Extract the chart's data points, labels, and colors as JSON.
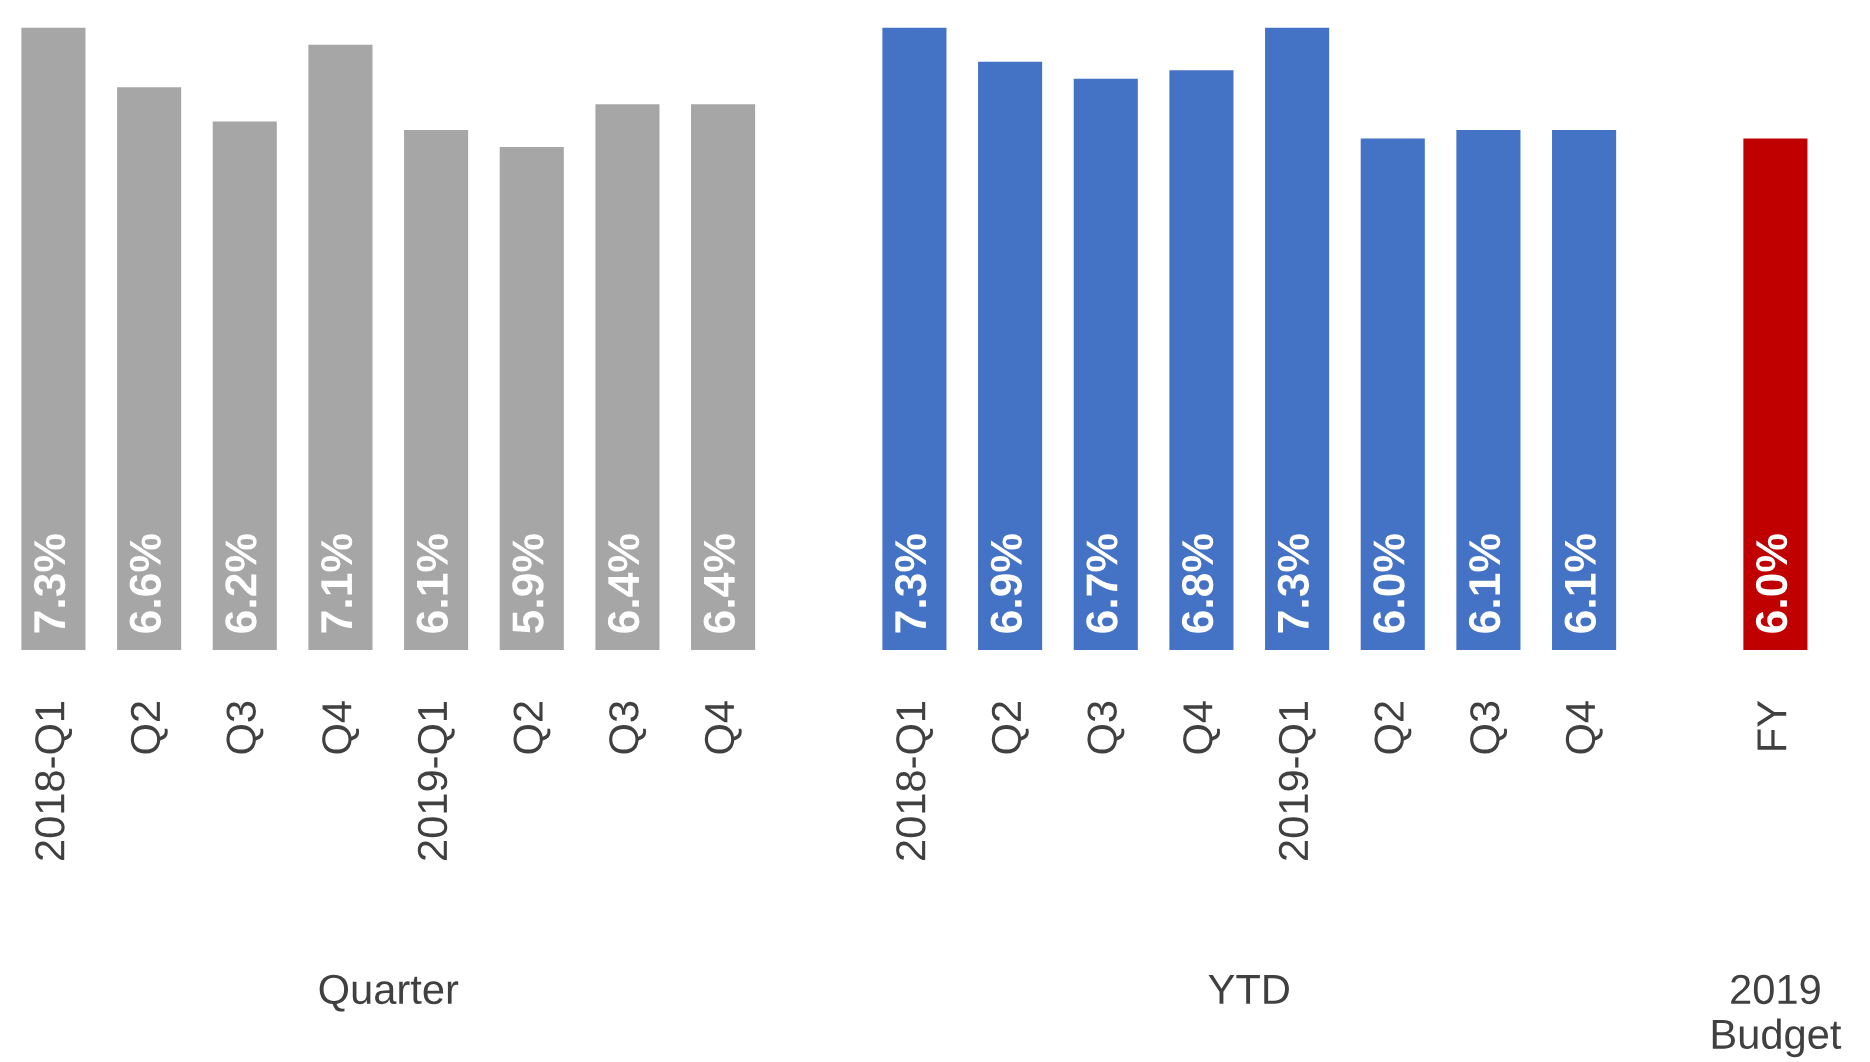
{
  "chart_data": {
    "type": "bar",
    "categories": [
      "2018-Q1",
      "Q2",
      "Q3",
      "Q4",
      "2019-Q1",
      "Q2",
      "Q3",
      "Q4",
      null,
      "2018-Q1",
      "Q2",
      "Q3",
      "Q4",
      "2019-Q1",
      "Q2",
      "Q3",
      "Q4",
      null,
      "FY"
    ],
    "values": [
      7.3,
      6.6,
      6.2,
      7.1,
      6.1,
      5.9,
      6.4,
      6.4,
      null,
      7.3,
      6.9,
      6.7,
      6.8,
      7.3,
      6.0,
      6.1,
      6.1,
      null,
      6.0
    ],
    "value_labels": [
      "7.3%",
      "6.6%",
      "6.2%",
      "7.1%",
      "6.1%",
      "5.9%",
      "6.4%",
      "6.4%",
      null,
      "7.3%",
      "6.9%",
      "6.7%",
      "6.8%",
      "7.3%",
      "6.0%",
      "6.1%",
      "6.1%",
      null,
      "6.0%"
    ],
    "colors": [
      "#a6a6a6",
      "#a6a6a6",
      "#a6a6a6",
      "#a6a6a6",
      "#a6a6a6",
      "#a6a6a6",
      "#a6a6a6",
      "#a6a6a6",
      null,
      "#4472c4",
      "#4472c4",
      "#4472c4",
      "#4472c4",
      "#4472c4",
      "#4472c4",
      "#4472c4",
      "#4472c4",
      null,
      "#c00000"
    ],
    "annotations": [
      "Quarter",
      "YTD",
      "2019\nBudget"
    ],
    "grid": false,
    "legend": false
  }
}
